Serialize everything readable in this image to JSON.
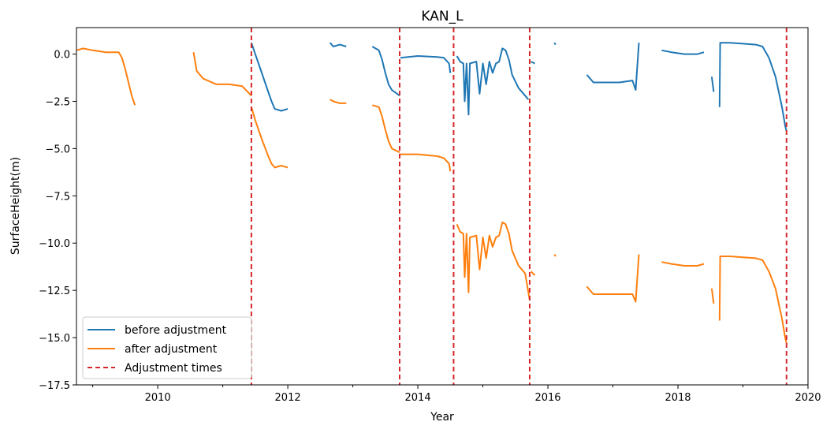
{
  "chart_data": {
    "type": "line",
    "title": "KAN_L",
    "xlabel": "Year",
    "ylabel": "SurfaceHeight(m)",
    "xlim": [
      2008.75,
      2020.0
    ],
    "ylim": [
      -17.5,
      1.4
    ],
    "x_ticks": [
      2010,
      2012,
      2014,
      2016,
      2018,
      2020
    ],
    "x_tick_labels": [
      "2010",
      "2012",
      "2014",
      "2016",
      "2018",
      "2020"
    ],
    "y_ticks": [
      0.0,
      -2.5,
      -5.0,
      -7.5,
      -10.0,
      -12.5,
      -15.0,
      -17.5
    ],
    "y_tick_labels": [
      "0.0",
      "−2.5",
      "−5.0",
      "−7.5",
      "−10.0",
      "−12.5",
      "−15.0",
      "−17.5"
    ],
    "grid": false,
    "legend_position": "lower-left",
    "adjustment_times": [
      2011.44,
      2013.72,
      2014.55,
      2015.72,
      2019.67
    ],
    "series": [
      {
        "name": "before adjustment",
        "color": "#1f77b4",
        "style": "solid",
        "segments": [
          [
            [
              2011.44,
              0.6
            ],
            [
              2011.5,
              0.0
            ],
            [
              2011.6,
              -1.0
            ],
            [
              2011.7,
              -2.0
            ],
            [
              2011.75,
              -2.5
            ],
            [
              2011.8,
              -2.9
            ],
            [
              2011.9,
              -3.0
            ],
            [
              2012.0,
              -2.9
            ]
          ],
          [
            [
              2012.65,
              0.6
            ],
            [
              2012.7,
              0.4
            ],
            [
              2012.8,
              0.5
            ],
            [
              2012.9,
              0.4
            ]
          ],
          [
            [
              2013.3,
              0.4
            ],
            [
              2013.4,
              0.2
            ],
            [
              2013.45,
              -0.3
            ],
            [
              2013.5,
              -1.0
            ],
            [
              2013.55,
              -1.6
            ],
            [
              2013.6,
              -1.9
            ],
            [
              2013.72,
              -2.2
            ]
          ],
          [
            [
              2013.73,
              -0.2
            ],
            [
              2014.0,
              -0.1
            ],
            [
              2014.3,
              -0.15
            ],
            [
              2014.4,
              -0.2
            ],
            [
              2014.48,
              -0.5
            ],
            [
              2014.5,
              -1.0
            ]
          ],
          [
            [
              2014.6,
              -0.1
            ],
            [
              2014.65,
              -0.4
            ],
            [
              2014.7,
              -0.5
            ],
            [
              2014.72,
              -2.5
            ],
            [
              2014.75,
              -0.5
            ],
            [
              2014.78,
              -3.2
            ],
            [
              2014.8,
              -0.5
            ],
            [
              2014.9,
              -0.4
            ],
            [
              2014.95,
              -2.1
            ],
            [
              2015.0,
              -0.5
            ],
            [
              2015.05,
              -1.6
            ],
            [
              2015.1,
              -0.4
            ],
            [
              2015.15,
              -1.0
            ],
            [
              2015.2,
              -0.5
            ],
            [
              2015.25,
              -0.4
            ],
            [
              2015.3,
              0.3
            ],
            [
              2015.35,
              0.2
            ],
            [
              2015.4,
              -0.3
            ],
            [
              2015.45,
              -1.1
            ],
            [
              2015.55,
              -1.8
            ],
            [
              2015.65,
              -2.2
            ],
            [
              2015.7,
              -2.4
            ]
          ],
          [
            [
              2015.74,
              -0.4
            ],
            [
              2015.8,
              -0.5
            ]
          ],
          [
            [
              2016.1,
              0.6
            ],
            [
              2016.12,
              0.5
            ]
          ],
          [
            [
              2016.6,
              -1.1
            ],
            [
              2016.7,
              -1.5
            ],
            [
              2016.9,
              -1.5
            ],
            [
              2017.1,
              -1.5
            ],
            [
              2017.3,
              -1.4
            ],
            [
              2017.35,
              -1.9
            ],
            [
              2017.4,
              0.6
            ]
          ],
          [
            [
              2017.75,
              0.2
            ],
            [
              2017.9,
              0.1
            ],
            [
              2018.1,
              0.0
            ],
            [
              2018.3,
              0.0
            ],
            [
              2018.4,
              0.1
            ]
          ],
          [
            [
              2018.52,
              -1.2
            ],
            [
              2018.55,
              -2.0
            ]
          ],
          [
            [
              2018.64,
              -2.8
            ],
            [
              2018.65,
              0.6
            ],
            [
              2018.8,
              0.6
            ],
            [
              2019.0,
              0.55
            ],
            [
              2019.2,
              0.5
            ],
            [
              2019.3,
              0.4
            ],
            [
              2019.4,
              -0.2
            ],
            [
              2019.5,
              -1.2
            ],
            [
              2019.6,
              -2.8
            ],
            [
              2019.65,
              -3.8
            ],
            [
              2019.67,
              -4.1
            ]
          ]
        ]
      },
      {
        "name": "after adjustment",
        "color": "#ff7f0e",
        "style": "solid",
        "segments": [
          [
            [
              2008.75,
              0.2
            ],
            [
              2008.85,
              0.3
            ],
            [
              2009.0,
              0.2
            ],
            [
              2009.2,
              0.1
            ],
            [
              2009.4,
              0.1
            ],
            [
              2009.45,
              -0.2
            ],
            [
              2009.5,
              -0.8
            ],
            [
              2009.55,
              -1.5
            ],
            [
              2009.6,
              -2.2
            ],
            [
              2009.65,
              -2.7
            ]
          ],
          [
            [
              2010.55,
              0.1
            ],
            [
              2010.6,
              -0.9
            ],
            [
              2010.7,
              -1.3
            ],
            [
              2010.9,
              -1.6
            ],
            [
              2011.1,
              -1.6
            ],
            [
              2011.3,
              -1.7
            ],
            [
              2011.44,
              -2.2
            ]
          ],
          [
            [
              2011.44,
              -2.8
            ],
            [
              2011.5,
              -3.5
            ],
            [
              2011.6,
              -4.5
            ],
            [
              2011.7,
              -5.4
            ],
            [
              2011.75,
              -5.8
            ],
            [
              2011.8,
              -6.0
            ],
            [
              2011.9,
              -5.9
            ],
            [
              2012.0,
              -6.0
            ]
          ],
          [
            [
              2012.65,
              -2.4
            ],
            [
              2012.7,
              -2.5
            ],
            [
              2012.8,
              -2.6
            ],
            [
              2012.9,
              -2.6
            ]
          ],
          [
            [
              2013.3,
              -2.7
            ],
            [
              2013.4,
              -2.8
            ],
            [
              2013.45,
              -3.3
            ],
            [
              2013.5,
              -4.0
            ],
            [
              2013.55,
              -4.6
            ],
            [
              2013.6,
              -5.0
            ],
            [
              2013.72,
              -5.2
            ]
          ],
          [
            [
              2013.73,
              -5.3
            ],
            [
              2014.0,
              -5.3
            ],
            [
              2014.3,
              -5.4
            ],
            [
              2014.4,
              -5.5
            ],
            [
              2014.48,
              -5.8
            ],
            [
              2014.5,
              -6.2
            ]
          ],
          [
            [
              2014.6,
              -9.0
            ],
            [
              2014.65,
              -9.4
            ],
            [
              2014.7,
              -9.5
            ],
            [
              2014.72,
              -11.8
            ],
            [
              2014.75,
              -9.5
            ],
            [
              2014.78,
              -12.6
            ],
            [
              2014.8,
              -9.7
            ],
            [
              2014.9,
              -9.6
            ],
            [
              2014.95,
              -11.4
            ],
            [
              2015.0,
              -9.7
            ],
            [
              2015.05,
              -10.8
            ],
            [
              2015.1,
              -9.6
            ],
            [
              2015.15,
              -10.2
            ],
            [
              2015.2,
              -9.7
            ],
            [
              2015.25,
              -9.6
            ],
            [
              2015.3,
              -8.9
            ],
            [
              2015.35,
              -9.0
            ],
            [
              2015.4,
              -9.5
            ],
            [
              2015.45,
              -10.4
            ],
            [
              2015.55,
              -11.2
            ],
            [
              2015.65,
              -11.6
            ],
            [
              2015.72,
              -13.0
            ]
          ],
          [
            [
              2015.74,
              -11.5
            ],
            [
              2015.8,
              -11.7
            ]
          ],
          [
            [
              2016.1,
              -10.6
            ],
            [
              2016.12,
              -10.7
            ]
          ],
          [
            [
              2016.6,
              -12.3
            ],
            [
              2016.7,
              -12.7
            ],
            [
              2016.9,
              -12.7
            ],
            [
              2017.1,
              -12.7
            ],
            [
              2017.3,
              -12.7
            ],
            [
              2017.35,
              -13.1
            ],
            [
              2017.4,
              -10.6
            ]
          ],
          [
            [
              2017.75,
              -11.0
            ],
            [
              2017.9,
              -11.1
            ],
            [
              2018.1,
              -11.2
            ],
            [
              2018.3,
              -11.2
            ],
            [
              2018.4,
              -11.1
            ]
          ],
          [
            [
              2018.52,
              -12.4
            ],
            [
              2018.55,
              -13.2
            ]
          ],
          [
            [
              2018.64,
              -14.1
            ],
            [
              2018.65,
              -10.7
            ],
            [
              2018.8,
              -10.7
            ],
            [
              2019.0,
              -10.75
            ],
            [
              2019.2,
              -10.8
            ],
            [
              2019.3,
              -10.9
            ],
            [
              2019.4,
              -11.5
            ],
            [
              2019.5,
              -12.4
            ],
            [
              2019.6,
              -14.0
            ],
            [
              2019.65,
              -15.0
            ],
            [
              2019.67,
              -15.3
            ]
          ]
        ]
      }
    ],
    "legend": [
      {
        "label": "before adjustment",
        "color": "#1f77b4",
        "style": "solid"
      },
      {
        "label": "after adjustment",
        "color": "#ff7f0e",
        "style": "solid"
      },
      {
        "label": "Adjustment times",
        "color": "#d62728",
        "style": "dashed"
      }
    ]
  }
}
